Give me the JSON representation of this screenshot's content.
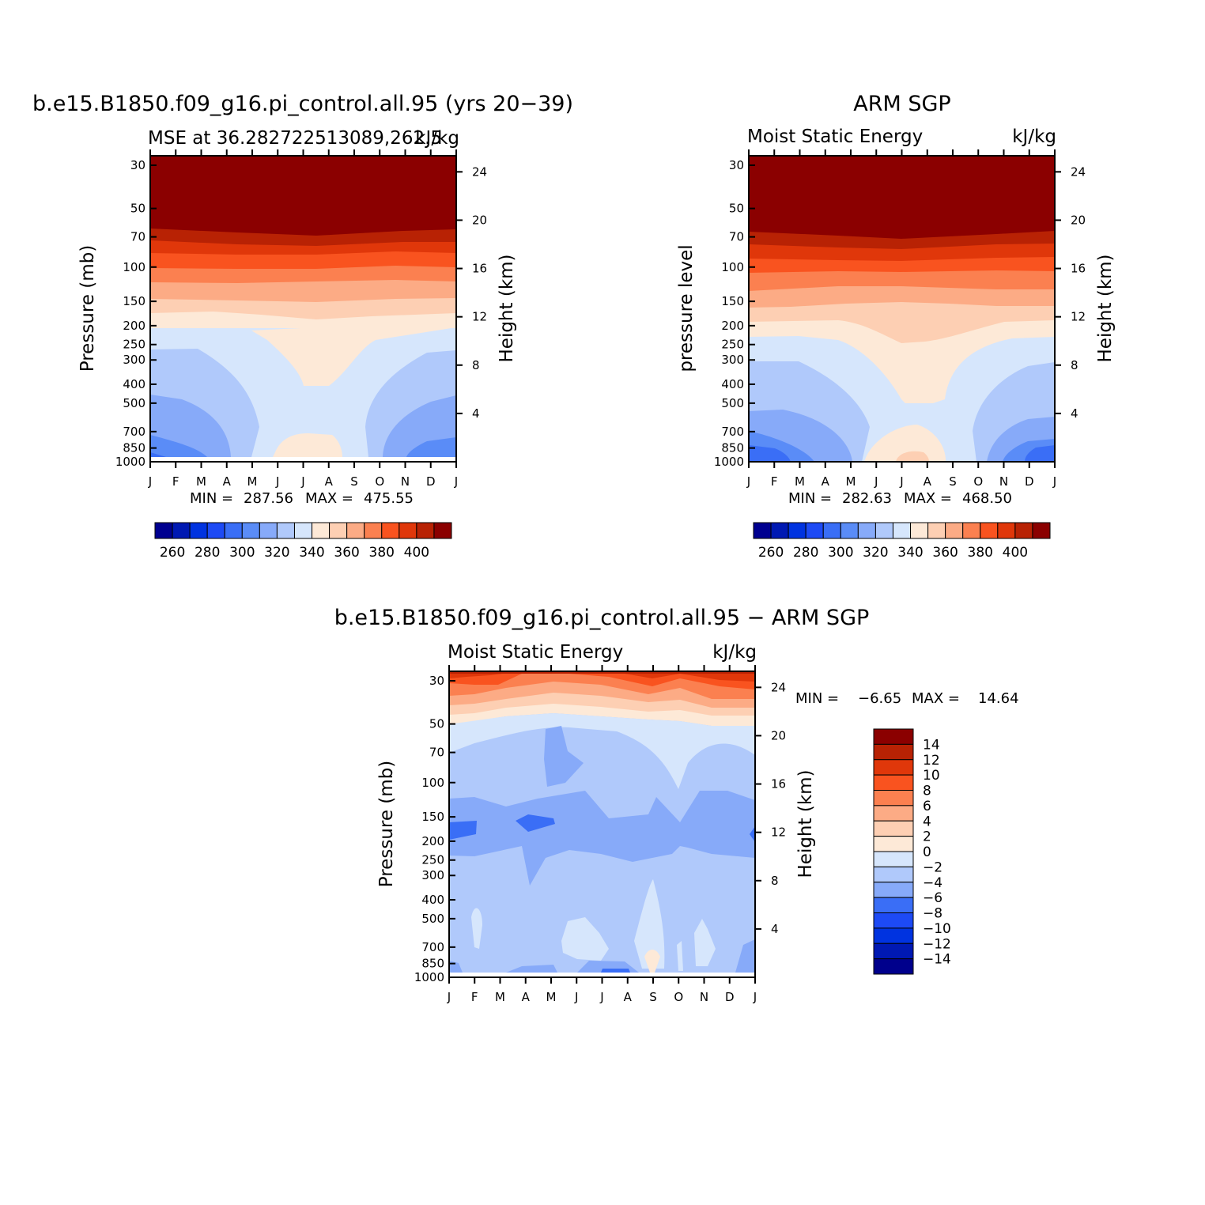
{
  "colors": {
    "model_levels": [
      "#000090",
      "#0019b3",
      "#0033e0",
      "#1d4af5",
      "#3a6ef6",
      "#5a8cf7",
      "#87aaf9",
      "#b0c9fb",
      "#d6e6fc",
      "#fde9d7",
      "#fdcfb3",
      "#fcab85",
      "#fb8050",
      "#f9531f",
      "#e0370a",
      "#b82204",
      "#8b0000"
    ],
    "diff_levels": [
      "#00008c",
      "#0019b3",
      "#0033e0",
      "#1d4af5",
      "#3a6ef6",
      "#87aaf9",
      "#b0c9fb",
      "#d6e6fc",
      "#fde9d7",
      "#fdcfb3",
      "#fcab85",
      "#fb8050",
      "#f9531f",
      "#e0370a",
      "#b82204",
      "#8b0000"
    ]
  },
  "chart_data": [
    {
      "type": "heatmap",
      "title": "b.e15.B1850.f09_g16.pi_control.all.95 (yrs 20−39)",
      "subtitle_left": "MSE at 36.2827225130​89,262.5",
      "subtitle_right": "kJ/kg",
      "ylabel": "Pressure (mb)",
      "y2label": "Height (km)",
      "x_ticks": [
        "J",
        "F",
        "M",
        "A",
        "M",
        "J",
        "J",
        "A",
        "S",
        "O",
        "N",
        "D",
        "J"
      ],
      "y_ticks": [
        "30",
        "50",
        "70",
        "100",
        "150",
        "200",
        "250",
        "300",
        "400",
        "500",
        "700",
        "850",
        "1000"
      ],
      "y2_ticks": [
        "24",
        "20",
        "16",
        "12",
        "8",
        "4"
      ],
      "min_label": "MIN =",
      "min_value": "287.56",
      "max_label": "MAX =",
      "max_value": "475.55",
      "colorbar_labels": [
        "260",
        "280",
        "300",
        "320",
        "340",
        "360",
        "380",
        "400"
      ]
    },
    {
      "type": "heatmap",
      "title": "ARM SGP",
      "subtitle_left": "Moist Static Energy",
      "subtitle_right": "kJ/kg",
      "ylabel": "pressure level",
      "y2label": "Height (km)",
      "x_ticks": [
        "J",
        "F",
        "M",
        "A",
        "M",
        "J",
        "J",
        "A",
        "S",
        "O",
        "N",
        "D",
        "J"
      ],
      "y_ticks": [
        "30",
        "50",
        "70",
        "100",
        "150",
        "200",
        "250",
        "300",
        "400",
        "500",
        "700",
        "850",
        "1000"
      ],
      "y2_ticks": [
        "24",
        "20",
        "16",
        "12",
        "8",
        "4"
      ],
      "min_label": "MIN =",
      "min_value": "282.63",
      "max_label": "MAX =",
      "max_value": "468.50",
      "colorbar_labels": [
        "260",
        "280",
        "300",
        "320",
        "340",
        "360",
        "380",
        "400"
      ]
    },
    {
      "type": "heatmap",
      "title": "b.e15.B1850.f09_g16.pi_control.all.95 − ARM SGP",
      "subtitle_left": "Moist Static Energy",
      "subtitle_right": "kJ/kg",
      "ylabel": "Pressure (mb)",
      "y2label": "Height (km)",
      "x_ticks": [
        "J",
        "F",
        "M",
        "A",
        "M",
        "J",
        "J",
        "A",
        "S",
        "O",
        "N",
        "D",
        "J"
      ],
      "y_ticks": [
        "30",
        "50",
        "70",
        "100",
        "150",
        "200",
        "250",
        "300",
        "400",
        "500",
        "700",
        "850",
        "1000"
      ],
      "y2_ticks": [
        "24",
        "20",
        "16",
        "12",
        "8",
        "4"
      ],
      "min_label": "MIN =",
      "min_value": "−6.65",
      "max_label": "MAX =",
      "max_value": "14.64",
      "colorbar_labels": [
        "14",
        "12",
        "10",
        "8",
        "6",
        "4",
        "2",
        "0",
        "−2",
        "−4",
        "−6",
        "−8",
        "−10",
        "−12",
        "−14"
      ]
    }
  ]
}
